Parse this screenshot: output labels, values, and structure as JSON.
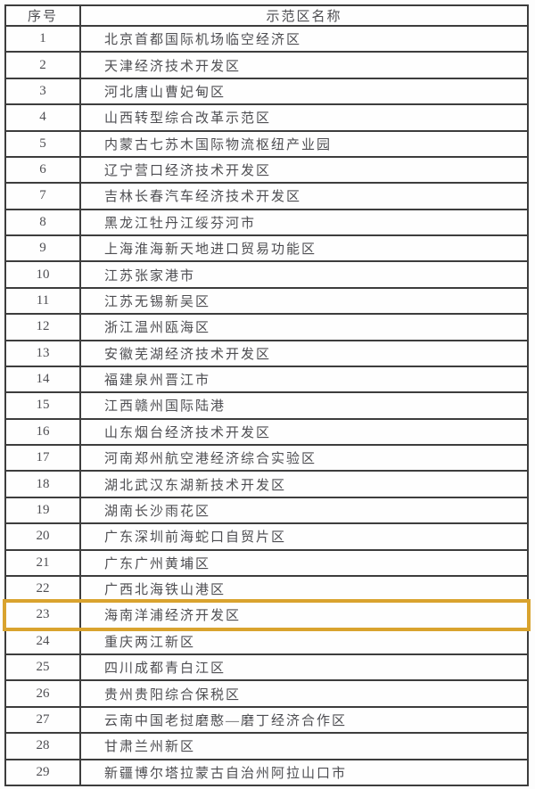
{
  "table": {
    "headers": {
      "index": "序号",
      "name": "示范区名称"
    },
    "highlighted_index": "23",
    "rows": [
      {
        "index": "1",
        "name": "北京首都国际机场临空经济区"
      },
      {
        "index": "2",
        "name": "天津经济技术开发区"
      },
      {
        "index": "3",
        "name": "河北唐山曹妃甸区"
      },
      {
        "index": "4",
        "name": "山西转型综合改革示范区"
      },
      {
        "index": "5",
        "name": "内蒙古七苏木国际物流枢纽产业园"
      },
      {
        "index": "6",
        "name": "辽宁营口经济技术开发区"
      },
      {
        "index": "7",
        "name": "吉林长春汽车经济技术开发区"
      },
      {
        "index": "8",
        "name": "黑龙江牡丹江绥芬河市"
      },
      {
        "index": "9",
        "name": "上海淮海新天地进口贸易功能区"
      },
      {
        "index": "10",
        "name": "江苏张家港市"
      },
      {
        "index": "11",
        "name": "江苏无锡新吴区"
      },
      {
        "index": "12",
        "name": "浙江温州瓯海区"
      },
      {
        "index": "13",
        "name": "安徽芜湖经济技术开发区"
      },
      {
        "index": "14",
        "name": "福建泉州晋江市"
      },
      {
        "index": "15",
        "name": "江西赣州国际陆港"
      },
      {
        "index": "16",
        "name": "山东烟台经济技术开发区"
      },
      {
        "index": "17",
        "name": "河南郑州航空港经济综合实验区"
      },
      {
        "index": "18",
        "name": "湖北武汉东湖新技术开发区"
      },
      {
        "index": "19",
        "name": "湖南长沙雨花区"
      },
      {
        "index": "20",
        "name": "广东深圳前海蛇口自贸片区"
      },
      {
        "index": "21",
        "name": "广东广州黄埔区"
      },
      {
        "index": "22",
        "name": "广西北海铁山港区"
      },
      {
        "index": "23",
        "name": "海南洋浦经济开发区"
      },
      {
        "index": "24",
        "name": "重庆两江新区"
      },
      {
        "index": "25",
        "name": "四川成都青白江区"
      },
      {
        "index": "26",
        "name": "贵州贵阳综合保税区"
      },
      {
        "index": "27",
        "name": "云南中国老挝磨憨—磨丁经济合作区"
      },
      {
        "index": "28",
        "name": "甘肃兰州新区"
      },
      {
        "index": "29",
        "name": "新疆博尔塔拉蒙古自治州阿拉山口市"
      }
    ]
  },
  "colors": {
    "grid": "#3d3d3d",
    "text": "#4e4e52",
    "highlight_border": "#d9a32e",
    "cell_background": "#fefefe",
    "page_background": "#fdfdfd"
  }
}
